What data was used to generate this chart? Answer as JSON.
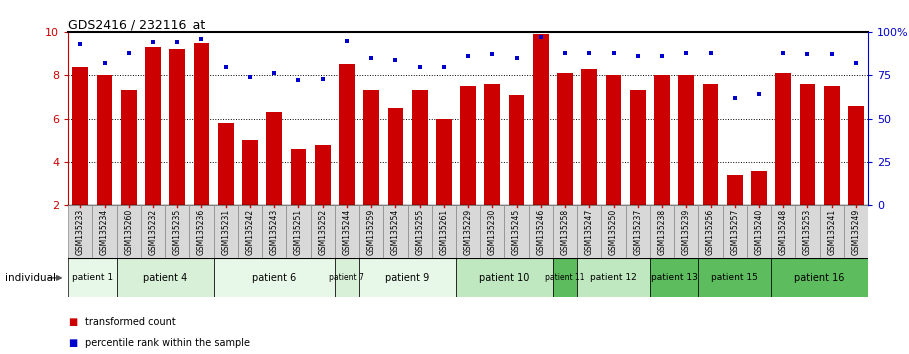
{
  "title": "GDS2416 / 232116_at",
  "samples": [
    "GSM135233",
    "GSM135234",
    "GSM135260",
    "GSM135232",
    "GSM135235",
    "GSM135236",
    "GSM135231",
    "GSM135242",
    "GSM135243",
    "GSM135251",
    "GSM135252",
    "GSM135244",
    "GSM135259",
    "GSM135254",
    "GSM135255",
    "GSM135261",
    "GSM135229",
    "GSM135230",
    "GSM135245",
    "GSM135246",
    "GSM135258",
    "GSM135247",
    "GSM135250",
    "GSM135237",
    "GSM135238",
    "GSM135239",
    "GSM135256",
    "GSM135257",
    "GSM135240",
    "GSM135248",
    "GSM135253",
    "GSM135241",
    "GSM135249"
  ],
  "bar_values": [
    8.4,
    8.0,
    7.3,
    9.3,
    9.2,
    9.5,
    5.8,
    5.0,
    6.3,
    4.6,
    4.8,
    8.5,
    7.3,
    6.5,
    7.3,
    6.0,
    7.5,
    7.6,
    7.1,
    9.9,
    8.1,
    8.3,
    8.0,
    7.3,
    8.0,
    8.0,
    7.6,
    3.4,
    3.6,
    8.1,
    7.6,
    7.5,
    6.6
  ],
  "dot_values": [
    93,
    82,
    88,
    94,
    94,
    96,
    80,
    74,
    76,
    72,
    73,
    95,
    85,
    84,
    80,
    80,
    86,
    87,
    85,
    97,
    88,
    88,
    88,
    86,
    86,
    88,
    88,
    62,
    64,
    88,
    87,
    87,
    82
  ],
  "patients": [
    {
      "label": "patient 1",
      "start": 0,
      "end": 2,
      "color": "#e8f8e8"
    },
    {
      "label": "patient 4",
      "start": 2,
      "end": 6,
      "color": "#d8f0d8"
    },
    {
      "label": "patient 6",
      "start": 6,
      "end": 11,
      "color": "#e8f8e8"
    },
    {
      "label": "patient 7",
      "start": 11,
      "end": 12,
      "color": "#d8f0d8"
    },
    {
      "label": "patient 9",
      "start": 12,
      "end": 16,
      "color": "#e8f8e8"
    },
    {
      "label": "patient 10",
      "start": 16,
      "end": 20,
      "color": "#c0e8c0"
    },
    {
      "label": "patient 11",
      "start": 20,
      "end": 21,
      "color": "#5dbc5d"
    },
    {
      "label": "patient 12",
      "start": 21,
      "end": 24,
      "color": "#c0e8c0"
    },
    {
      "label": "patient 13",
      "start": 24,
      "end": 26,
      "color": "#5dbc5d"
    },
    {
      "label": "patient 15",
      "start": 26,
      "end": 29,
      "color": "#5dbc5d"
    },
    {
      "label": "patient 16",
      "start": 29,
      "end": 33,
      "color": "#5dbc5d"
    }
  ],
  "ylim_left": [
    2,
    10
  ],
  "ylim_right": [
    0,
    100
  ],
  "yticks_left": [
    2,
    4,
    6,
    8,
    10
  ],
  "yticks_right": [
    0,
    25,
    50,
    75,
    100
  ],
  "bar_color": "#cc0000",
  "dot_color": "#0000cc",
  "background_color": "#ffffff"
}
